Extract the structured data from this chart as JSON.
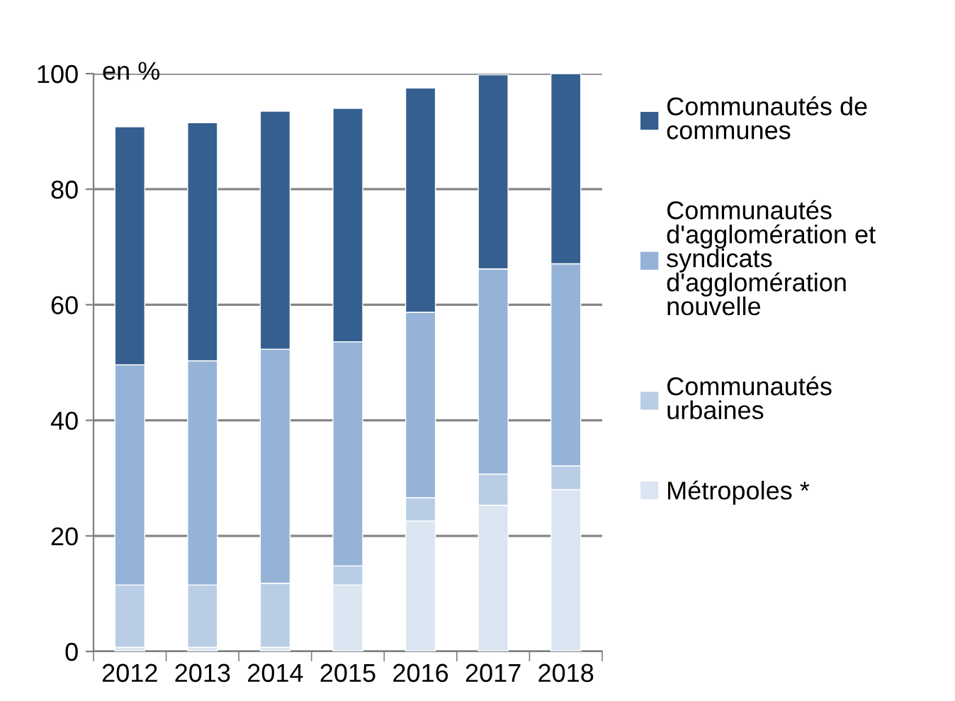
{
  "chart_data": {
    "type": "bar",
    "stacked": true,
    "ylabel": "en %",
    "categories": [
      "2012",
      "2013",
      "2014",
      "2015",
      "2016",
      "2017",
      "2018"
    ],
    "series": [
      {
        "name": "Métropoles *",
        "color": "#dce6f2",
        "values": [
          0.7,
          0.7,
          0.7,
          11.5,
          22.6,
          25.3,
          28.0
        ]
      },
      {
        "name": "Communautés\nurbaines",
        "color": "#b9cde5",
        "values": [
          10.8,
          10.8,
          11.1,
          3.3,
          4.0,
          5.4,
          4.1
        ]
      },
      {
        "name": "Communautés\nd'agglomération et\nsyndicats\nd'agglomération\nnouvelle",
        "color": "#95b3d7",
        "values": [
          38.1,
          38.8,
          40.5,
          38.8,
          32.1,
          35.5,
          35.0
        ]
      },
      {
        "name": "Communautés de\ncommunes",
        "color": "#355f8f",
        "values": [
          41.2,
          41.2,
          41.2,
          40.4,
          38.8,
          33.6,
          32.9
        ]
      }
    ],
    "ylim": [
      0,
      100
    ],
    "yticks": [
      0,
      20,
      40,
      60,
      80,
      100
    ],
    "grid": "y",
    "legend": "right"
  }
}
